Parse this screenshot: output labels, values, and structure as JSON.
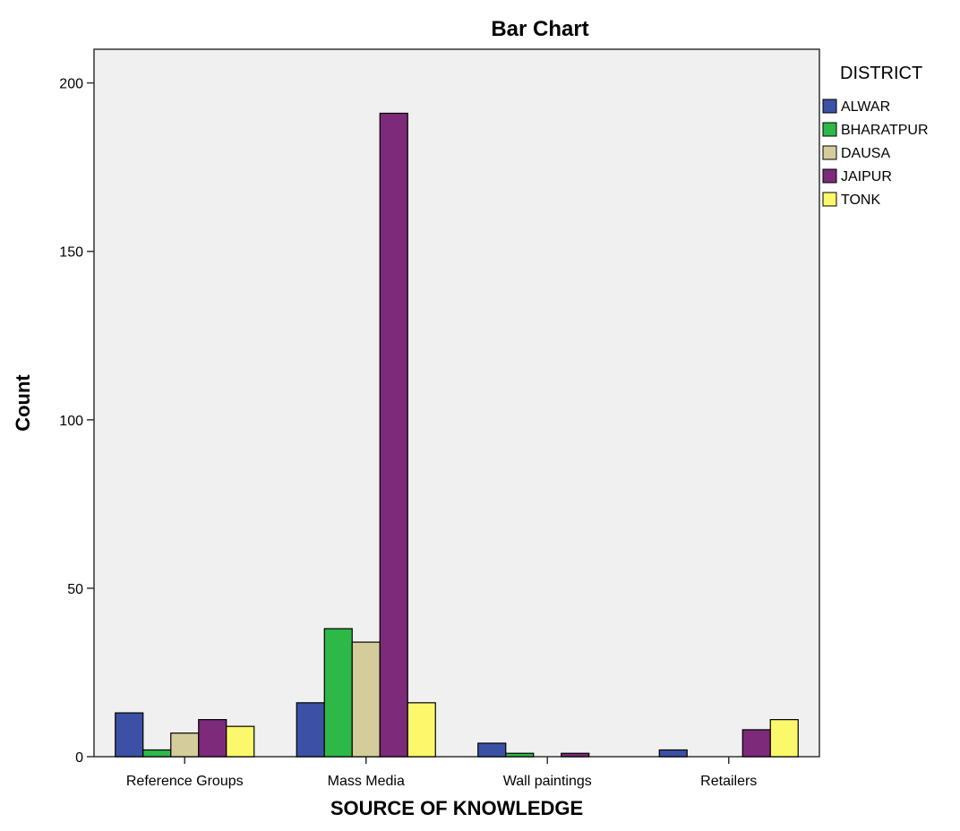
{
  "chart_data": {
    "type": "bar",
    "title": "Bar Chart",
    "xlabel": "SOURCE OF KNOWLEDGE",
    "ylabel": "Count",
    "ylim": [
      0,
      210
    ],
    "yticks": [
      0,
      50,
      100,
      150,
      200
    ],
    "grid": false,
    "legend_title": "DISTRICT",
    "legend_position": "right",
    "categories": [
      "Reference Groups",
      "Mass Media",
      "Wall paintings",
      "Retailers"
    ],
    "series": [
      {
        "name": "ALWAR",
        "color": "#3c51a5",
        "values": [
          13,
          16,
          4,
          2
        ]
      },
      {
        "name": "BHARATPUR",
        "color": "#2eb848",
        "values": [
          2,
          38,
          1,
          0
        ]
      },
      {
        "name": "DAUSA",
        "color": "#d4cc9a",
        "values": [
          7,
          34,
          0,
          0
        ]
      },
      {
        "name": "JAIPUR",
        "color": "#7c2a79",
        "values": [
          11,
          191,
          1,
          8
        ]
      },
      {
        "name": "TONK",
        "color": "#fcf86c",
        "values": [
          9,
          16,
          0,
          11
        ]
      }
    ]
  }
}
